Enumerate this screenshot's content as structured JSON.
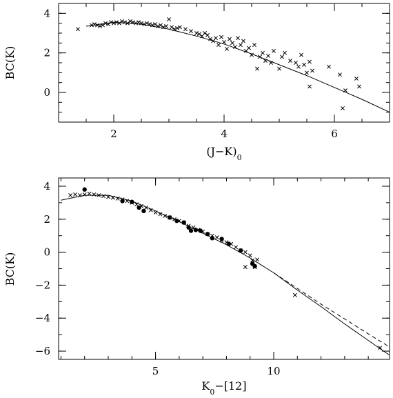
{
  "chart_data": [
    {
      "type": "scatter",
      "xlabel": "(J−K)",
      "xlabel_subscript": "0",
      "ylabel": "BC(K)",
      "xlim": [
        1.0,
        7.0
      ],
      "ylim": [
        -1.5,
        4.5
      ],
      "xticks": [
        2,
        4,
        6
      ],
      "yticks": [
        0,
        2,
        4
      ],
      "series": [
        {
          "marker": "x",
          "points": [
            [
              1.35,
              3.2
            ],
            [
              1.6,
              3.4
            ],
            [
              1.65,
              3.45
            ],
            [
              1.7,
              3.4
            ],
            [
              1.75,
              3.35
            ],
            [
              1.8,
              3.4
            ],
            [
              1.85,
              3.5
            ],
            [
              1.9,
              3.45
            ],
            [
              1.95,
              3.55
            ],
            [
              2.0,
              3.5
            ],
            [
              2.05,
              3.55
            ],
            [
              2.1,
              3.5
            ],
            [
              2.15,
              3.6
            ],
            [
              2.2,
              3.55
            ],
            [
              2.25,
              3.5
            ],
            [
              2.3,
              3.6
            ],
            [
              2.35,
              3.55
            ],
            [
              2.4,
              3.5
            ],
            [
              2.45,
              3.55
            ],
            [
              2.5,
              3.5
            ],
            [
              2.55,
              3.45
            ],
            [
              2.6,
              3.5
            ],
            [
              2.65,
              3.45
            ],
            [
              2.7,
              3.4
            ],
            [
              2.75,
              3.45
            ],
            [
              2.8,
              3.35
            ],
            [
              2.85,
              3.4
            ],
            [
              2.9,
              3.3
            ],
            [
              2.95,
              3.35
            ],
            [
              3.0,
              3.7
            ],
            [
              3.05,
              3.3
            ],
            [
              3.1,
              3.2
            ],
            [
              3.15,
              3.25
            ],
            [
              3.2,
              3.3
            ],
            [
              3.3,
              3.2
            ],
            [
              3.4,
              3.1
            ],
            [
              3.5,
              3.0
            ],
            [
              3.55,
              2.95
            ],
            [
              3.6,
              2.85
            ],
            [
              3.65,
              3.0
            ],
            [
              3.7,
              2.9
            ],
            [
              3.75,
              2.7
            ],
            [
              3.8,
              2.6
            ],
            [
              3.85,
              2.75
            ],
            [
              3.9,
              2.4
            ],
            [
              3.95,
              2.8
            ],
            [
              4.0,
              2.55
            ],
            [
              4.05,
              2.2
            ],
            [
              4.1,
              2.7
            ],
            [
              4.15,
              2.5
            ],
            [
              4.2,
              2.3
            ],
            [
              4.25,
              2.75
            ],
            [
              4.3,
              2.4
            ],
            [
              4.35,
              2.6
            ],
            [
              4.4,
              2.1
            ],
            [
              4.45,
              2.25
            ],
            [
              4.5,
              1.9
            ],
            [
              4.55,
              2.4
            ],
            [
              4.6,
              1.2
            ],
            [
              4.65,
              1.8
            ],
            [
              4.7,
              2.0
            ],
            [
              4.75,
              1.6
            ],
            [
              4.8,
              1.85
            ],
            [
              4.85,
              1.5
            ],
            [
              4.9,
              2.1
            ],
            [
              5.0,
              1.2
            ],
            [
              5.05,
              1.8
            ],
            [
              5.1,
              2.0
            ],
            [
              5.2,
              1.6
            ],
            [
              5.3,
              1.5
            ],
            [
              5.35,
              1.3
            ],
            [
              5.4,
              1.9
            ],
            [
              5.45,
              1.4
            ],
            [
              5.5,
              1.0
            ],
            [
              5.55,
              1.55
            ],
            [
              5.6,
              1.1
            ],
            [
              5.55,
              0.3
            ],
            [
              5.9,
              1.3
            ],
            [
              6.1,
              0.9
            ],
            [
              6.15,
              -0.8
            ],
            [
              6.2,
              0.1
            ],
            [
              6.4,
              0.7
            ],
            [
              6.45,
              0.3
            ]
          ]
        }
      ],
      "fit_curve": [
        [
          1.5,
          3.35
        ],
        [
          2.0,
          3.55
        ],
        [
          2.5,
          3.45
        ],
        [
          3.0,
          3.2
        ],
        [
          3.5,
          2.85
        ],
        [
          4.0,
          2.45
        ],
        [
          4.5,
          1.95
        ],
        [
          5.0,
          1.4
        ],
        [
          5.5,
          0.85
        ],
        [
          6.0,
          0.25
        ],
        [
          6.5,
          -0.35
        ],
        [
          7.0,
          -1.0
        ]
      ]
    },
    {
      "type": "scatter",
      "xlabel": "K",
      "xlabel_subscript": "0",
      "xlabel_suffix": "−[12]",
      "ylabel": "BC(K)",
      "xlim": [
        0.9,
        14.9
      ],
      "ylim": [
        -6.5,
        4.5
      ],
      "xticks": [
        5,
        10
      ],
      "yticks": [
        -6,
        -4,
        -2,
        0,
        2,
        4
      ],
      "series": [
        {
          "marker": "x",
          "points": [
            [
              1.4,
              3.45
            ],
            [
              1.6,
              3.5
            ],
            [
              1.8,
              3.45
            ],
            [
              2.0,
              3.5
            ],
            [
              2.2,
              3.55
            ],
            [
              2.4,
              3.5
            ],
            [
              2.6,
              3.45
            ],
            [
              2.8,
              3.4
            ],
            [
              3.0,
              3.35
            ],
            [
              3.2,
              3.3
            ],
            [
              3.4,
              3.25
            ],
            [
              3.6,
              3.2
            ],
            [
              3.8,
              3.1
            ],
            [
              4.0,
              3.0
            ],
            [
              4.2,
              2.9
            ],
            [
              4.4,
              2.8
            ],
            [
              4.6,
              2.7
            ],
            [
              4.8,
              2.55
            ],
            [
              5.0,
              2.4
            ],
            [
              5.2,
              2.3
            ],
            [
              5.4,
              2.2
            ],
            [
              5.6,
              2.1
            ],
            [
              5.8,
              2.0
            ],
            [
              6.0,
              1.9
            ],
            [
              6.2,
              1.8
            ],
            [
              6.4,
              1.6
            ],
            [
              6.6,
              1.5
            ],
            [
              6.8,
              1.35
            ],
            [
              7.0,
              1.25
            ],
            [
              7.2,
              1.1
            ],
            [
              7.4,
              1.0
            ],
            [
              7.6,
              0.9
            ],
            [
              7.8,
              0.7
            ],
            [
              8.0,
              0.6
            ],
            [
              8.2,
              0.5
            ],
            [
              8.4,
              0.3
            ],
            [
              8.6,
              0.1
            ],
            [
              8.8,
              0.0
            ],
            [
              9.0,
              -0.2
            ],
            [
              9.1,
              -0.5
            ],
            [
              9.2,
              -0.9
            ],
            [
              9.3,
              -0.45
            ],
            [
              8.8,
              -0.9
            ],
            [
              10.9,
              -2.6
            ],
            [
              14.5,
              -5.8
            ]
          ]
        },
        {
          "marker": "dot",
          "points": [
            [
              2.0,
              3.8
            ],
            [
              3.6,
              3.1
            ],
            [
              4.0,
              3.05
            ],
            [
              4.3,
              2.7
            ],
            [
              4.5,
              2.5
            ],
            [
              5.6,
              2.1
            ],
            [
              5.9,
              1.9
            ],
            [
              6.2,
              1.8
            ],
            [
              6.4,
              1.5
            ],
            [
              6.5,
              1.3
            ],
            [
              6.7,
              1.35
            ],
            [
              6.9,
              1.3
            ],
            [
              7.2,
              1.1
            ],
            [
              7.4,
              0.85
            ],
            [
              7.8,
              0.8
            ],
            [
              8.1,
              0.5
            ],
            [
              8.6,
              0.1
            ],
            [
              9.1,
              -0.7
            ],
            [
              9.2,
              -0.85
            ]
          ]
        }
      ],
      "fit_curve": [
        [
          1.0,
          3.15
        ],
        [
          2.0,
          3.45
        ],
        [
          3.0,
          3.45
        ],
        [
          4.0,
          3.1
        ],
        [
          5.0,
          2.5
        ],
        [
          6.0,
          1.85
        ],
        [
          7.0,
          1.15
        ],
        [
          8.0,
          0.45
        ],
        [
          9.0,
          -0.35
        ],
        [
          10.0,
          -1.25
        ],
        [
          11.0,
          -2.3
        ],
        [
          12.0,
          -3.3
        ],
        [
          13.0,
          -4.35
        ],
        [
          14.0,
          -5.35
        ],
        [
          14.9,
          -6.25
        ]
      ],
      "dashed_curve": [
        [
          10.0,
          -1.25
        ],
        [
          11.0,
          -2.2
        ],
        [
          12.0,
          -3.15
        ],
        [
          13.0,
          -4.05
        ],
        [
          14.0,
          -4.95
        ],
        [
          14.9,
          -5.75
        ]
      ]
    }
  ]
}
